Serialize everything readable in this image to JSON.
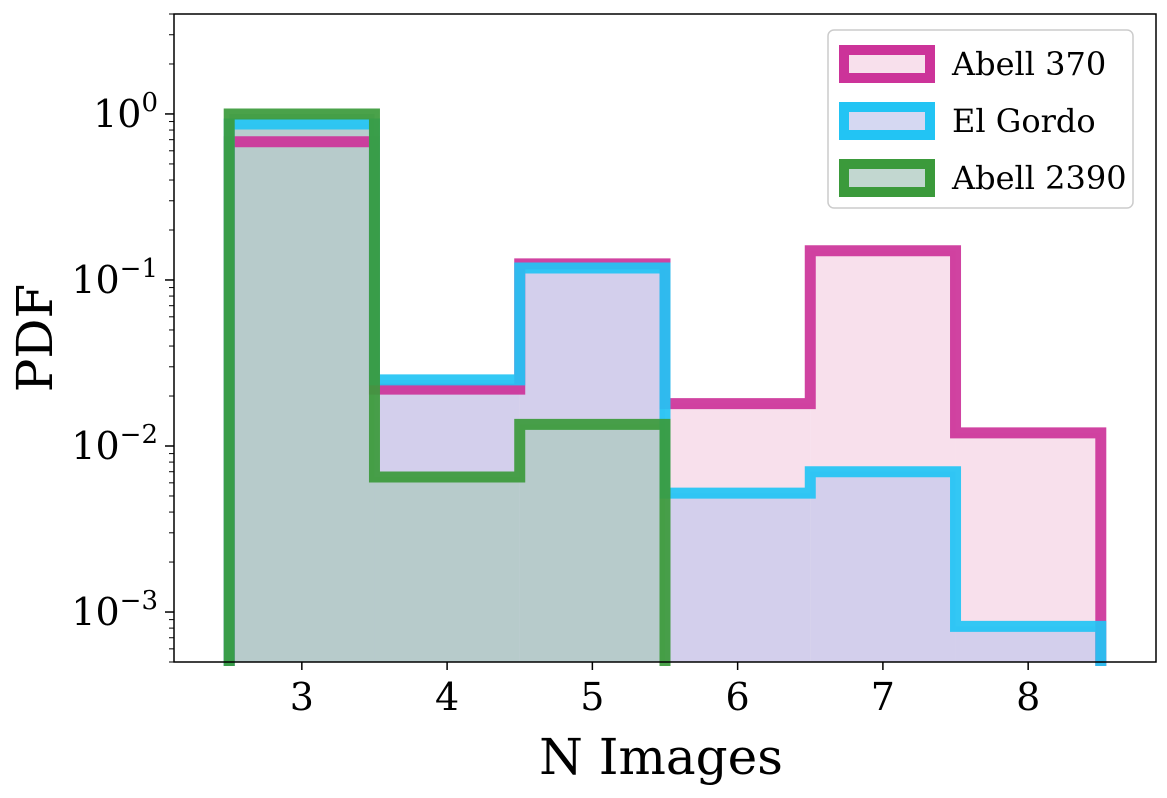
{
  "chart_data": {
    "type": "bar",
    "subtype": "step-histogram",
    "xlabel": "N Images",
    "ylabel": "PDF",
    "x_ticks": [
      3,
      4,
      5,
      6,
      7,
      8
    ],
    "x_range": [
      2.12,
      8.88
    ],
    "y_scale": "log",
    "y_range": [
      0.0005,
      4.0
    ],
    "y_ticks": [
      {
        "value": 1,
        "exp": "0"
      },
      {
        "value": 0.1,
        "exp": "−1"
      },
      {
        "value": 0.01,
        "exp": "−2"
      },
      {
        "value": 0.001,
        "exp": "−3"
      }
    ],
    "tick_base": "10",
    "bins": [
      {
        "lo": 2.5,
        "hi": 3.5
      },
      {
        "lo": 3.5,
        "hi": 4.5
      },
      {
        "lo": 4.5,
        "hi": 5.5
      },
      {
        "lo": 5.5,
        "hi": 6.5
      },
      {
        "lo": 6.5,
        "hi": 7.5
      },
      {
        "lo": 7.5,
        "hi": 8.5
      }
    ],
    "series": [
      {
        "name": "Abell 370",
        "color": "#cc3399",
        "fill": "#f5d5e6",
        "fill_opacity": 0.75,
        "values": [
          0.68,
          0.022,
          0.125,
          0.018,
          0.15,
          0.012
        ]
      },
      {
        "name": "El Gordo",
        "color": "#22c4f4",
        "fill": "#c3c8ec",
        "fill_opacity": 0.7,
        "values": [
          0.87,
          0.025,
          0.118,
          0.0052,
          0.007,
          0.00082
        ]
      },
      {
        "name": "Abell 2390",
        "color": "#3b9a3b",
        "fill": "#aec9c0",
        "fill_opacity": 0.75,
        "values": [
          1.0,
          0.0065,
          0.0135,
          null,
          null,
          null
        ]
      }
    ],
    "legend_position": "top-right",
    "grid": false
  }
}
